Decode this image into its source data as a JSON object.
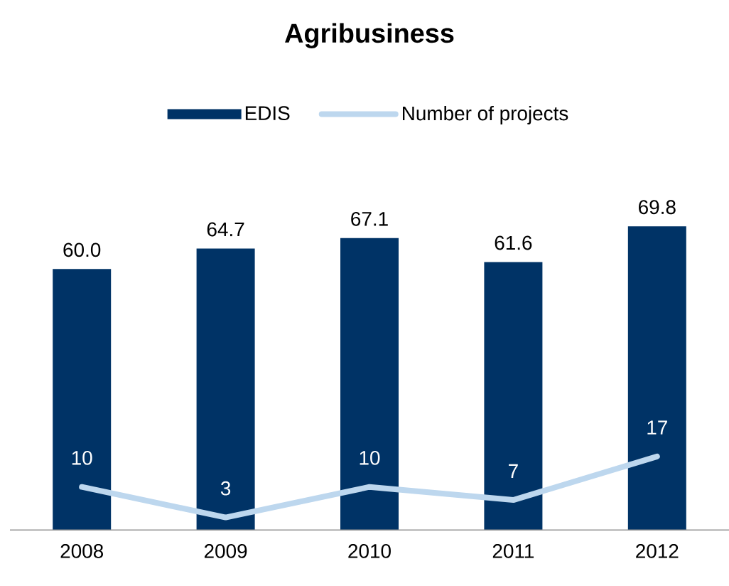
{
  "chart_data": {
    "type": "bar",
    "title": "Agribusiness",
    "categories": [
      "2008",
      "2009",
      "2010",
      "2011",
      "2012"
    ],
    "series": [
      {
        "name": "EDIS",
        "color": "#003366",
        "values": [
          60.0,
          64.7,
          67.1,
          61.6,
          69.8
        ],
        "value_labels": [
          "60.0",
          "64.7",
          "67.1",
          "61.6",
          "69.8"
        ]
      },
      {
        "name": "Number of projects",
        "type": "line",
        "color": "#bdd7ee",
        "values": [
          10,
          3,
          10,
          7,
          17
        ],
        "value_labels": [
          "10",
          "3",
          "10",
          "7",
          "17"
        ]
      }
    ],
    "legend": "top"
  }
}
